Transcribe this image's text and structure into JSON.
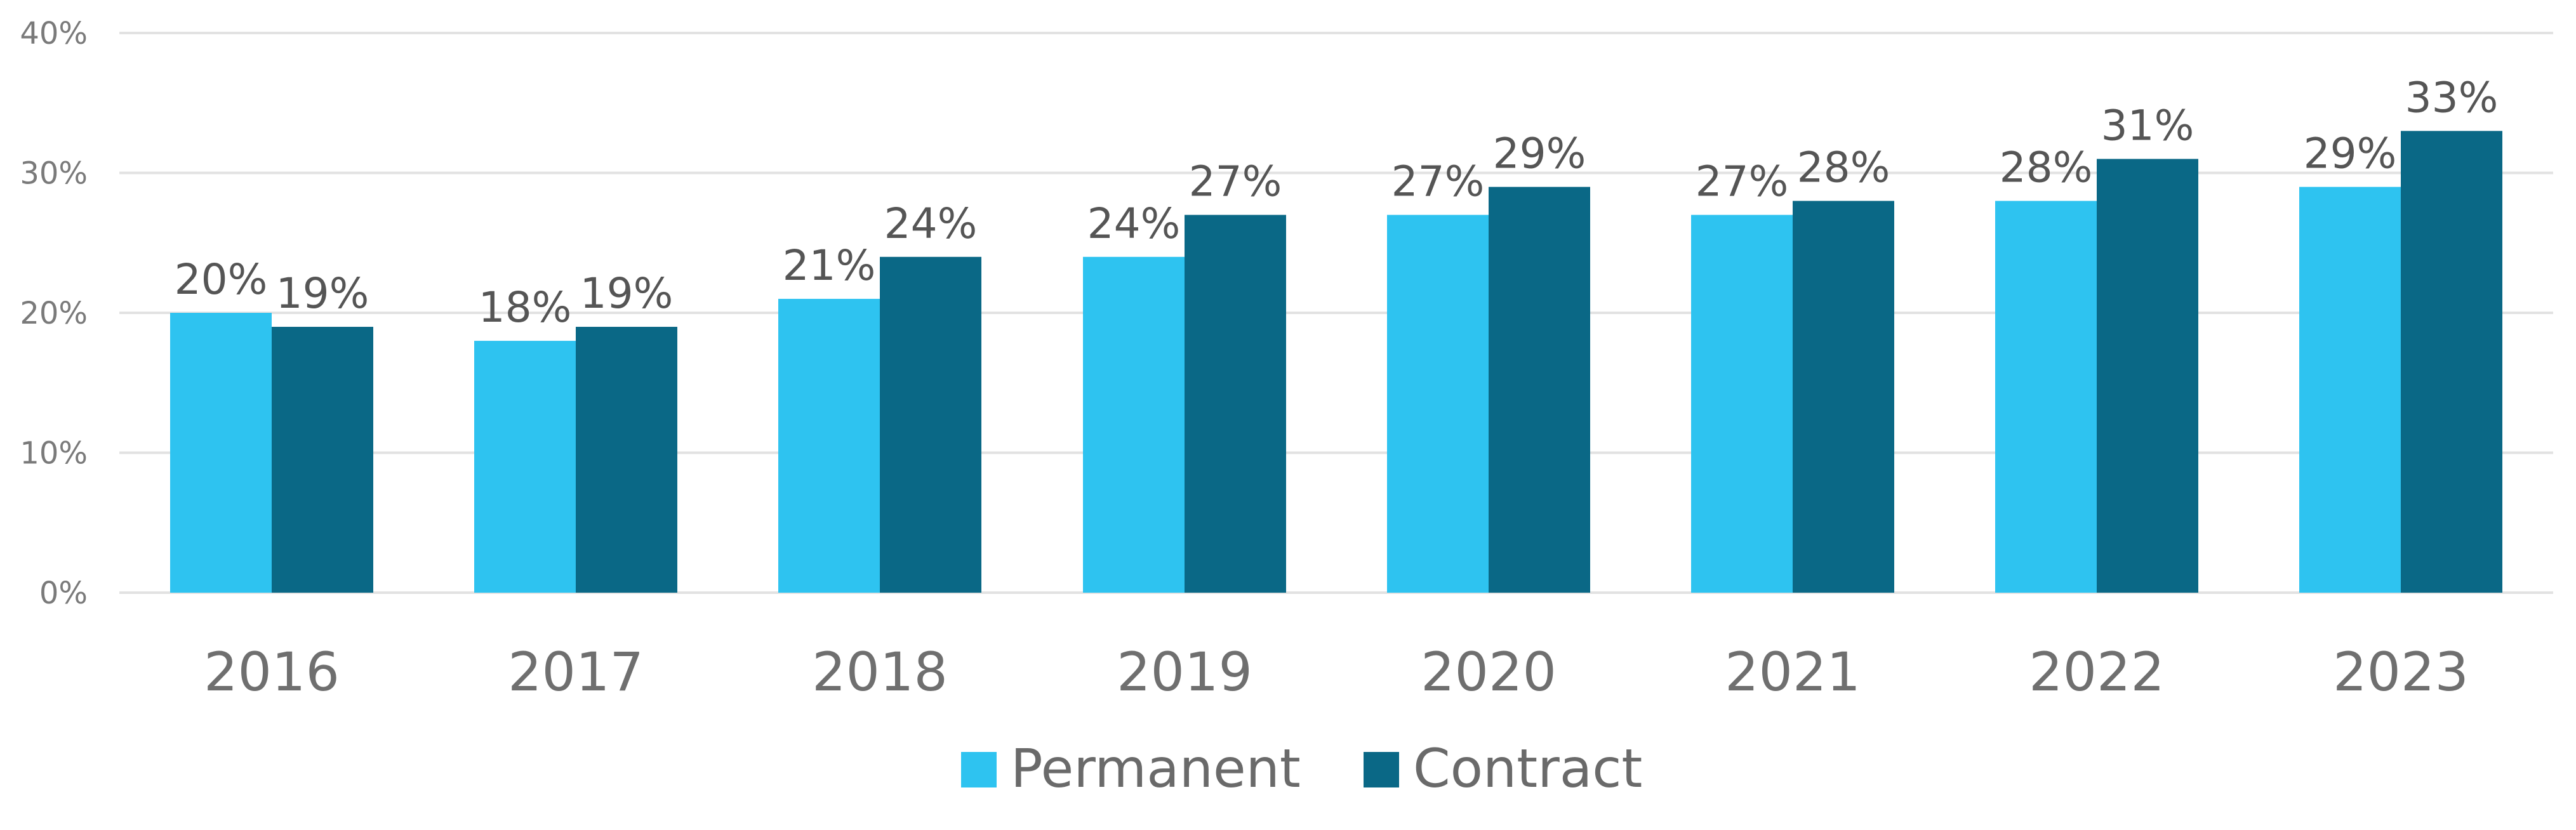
{
  "chart_data": {
    "type": "bar",
    "categories": [
      "2016",
      "2017",
      "2018",
      "2019",
      "2020",
      "2021",
      "2022",
      "2023"
    ],
    "series": [
      {
        "name": "Permanent",
        "values": [
          20,
          18,
          21,
          24,
          27,
          27,
          28,
          29
        ],
        "color": "#2EC3F0"
      },
      {
        "name": "Contract",
        "values": [
          19,
          19,
          24,
          27,
          29,
          28,
          31,
          33
        ],
        "color": "#0A6886"
      }
    ],
    "data_labels": [
      [
        "20%",
        "18%",
        "21%",
        "24%",
        "27%",
        "27%",
        "28%",
        "29%"
      ],
      [
        "19%",
        "19%",
        "24%",
        "27%",
        "29%",
        "28%",
        "31%",
        "33%"
      ]
    ],
    "yticks": [
      "0%",
      "10%",
      "20%",
      "30%",
      "40%"
    ],
    "ylim": [
      0,
      40
    ],
    "grid": true,
    "legend_position": "bottom-center",
    "title": "",
    "xlabel": "",
    "ylabel": ""
  }
}
